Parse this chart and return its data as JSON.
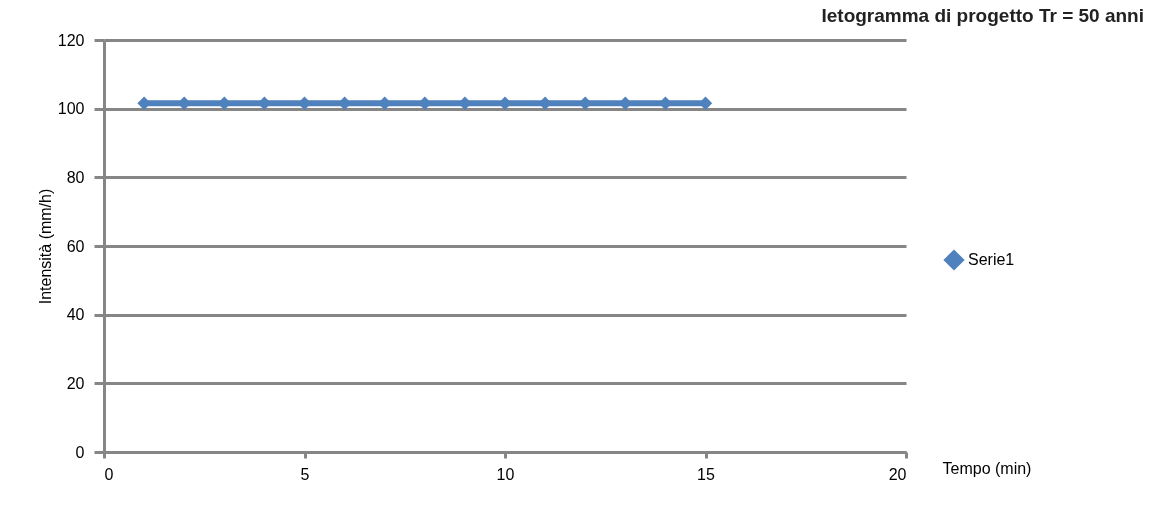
{
  "chart_data": {
    "type": "line",
    "title": "Ietogramma di progetto Tr = 50 anni",
    "xlabel": "Tempo (min)",
    "ylabel": "Intensità (mm/h)",
    "x": [
      1,
      2,
      3,
      4,
      5,
      6,
      7,
      8,
      9,
      10,
      11,
      12,
      13,
      14,
      15
    ],
    "series": [
      {
        "name": "Serie1",
        "color": "#4f81bd",
        "values": [
          101.6,
          101.6,
          101.6,
          101.6,
          101.6,
          101.6,
          101.6,
          101.6,
          101.6,
          101.6,
          101.6,
          101.6,
          101.6,
          101.6,
          101.6
        ]
      }
    ],
    "xlim": [
      0,
      20
    ],
    "xticks": [
      0,
      5,
      10,
      15,
      20
    ],
    "ylim": [
      0,
      120
    ],
    "yticks": [
      0,
      20,
      40,
      60,
      80,
      100,
      120
    ],
    "grid": "y",
    "legend": "right",
    "marker": "diamond",
    "line_style": "solid"
  }
}
